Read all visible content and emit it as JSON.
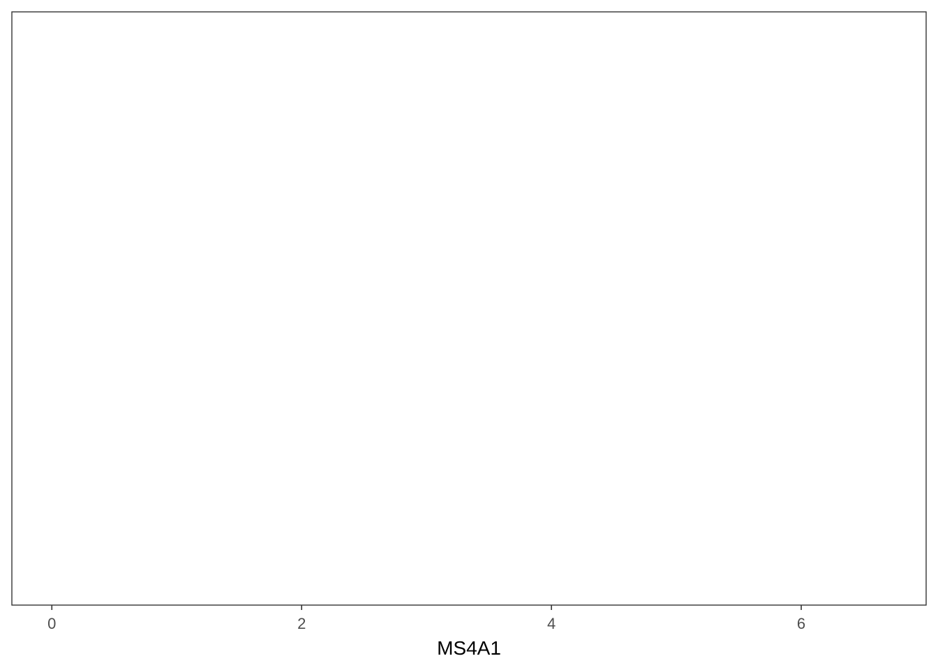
{
  "chart_data": {
    "type": "scatter",
    "title": "",
    "xlabel": "MS4A1",
    "ylabel": "",
    "xlim": [
      -0.32,
      7.0
    ],
    "x_ticks": [
      0,
      2,
      4,
      6
    ],
    "x_tick_labels": [
      "0",
      "2",
      "4",
      "6"
    ],
    "y_ticks": [],
    "grid": false,
    "legend": "none",
    "series": [],
    "colors": {
      "panel_border": "#333333",
      "tick_label": "#4d4d4d",
      "axis_title": "#000000",
      "background": "#ffffff"
    }
  }
}
